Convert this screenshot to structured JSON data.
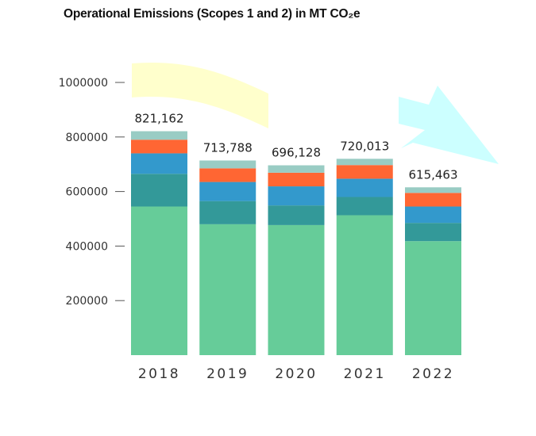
{
  "title": "Operational Emissions (Scopes 1 and 2) in MT CO₂e",
  "chart_data": {
    "type": "bar",
    "stacked": true,
    "title": "Operational Emissions (Scopes 1 and 2) in MT CO₂e",
    "xlabel": "",
    "ylabel": "",
    "categories": [
      "2018",
      "2019",
      "2020",
      "2021",
      "2022"
    ],
    "totals": [
      "821,162",
      "713,788",
      "696,128",
      "720,013",
      "615,463"
    ],
    "total_values": [
      821162,
      713788,
      696128,
      720013,
      615463
    ],
    "ylim": [
      0,
      1000000
    ],
    "yticks": [
      200000,
      400000,
      600000,
      800000,
      1000000
    ],
    "ytick_labels": [
      "200000",
      "400000",
      "600000",
      "800000",
      "1000000"
    ],
    "grid": false,
    "legend": "none",
    "series": [
      {
        "values": [
          545000,
          480000,
          477000,
          513000,
          418000
        ],
        "color": "#66cc99"
      },
      {
        "values": [
          120000,
          85000,
          72000,
          67000,
          67000
        ],
        "color": "#339999"
      },
      {
        "values": [
          75000,
          70000,
          70000,
          67000,
          60000
        ],
        "color": "#3399cc"
      },
      {
        "values": [
          50000,
          50000,
          50000,
          50000,
          50000
        ],
        "color": "#ff6633"
      },
      {
        "values": [
          31162,
          28788,
          27128,
          23013,
          20463
        ],
        "color": "#99ccc4"
      }
    ],
    "decorations": [
      {
        "kind": "arrow",
        "direction": "right",
        "color": "#ffffcc"
      },
      {
        "kind": "arrow",
        "direction": "down-right",
        "color": "#ccffff"
      }
    ]
  }
}
